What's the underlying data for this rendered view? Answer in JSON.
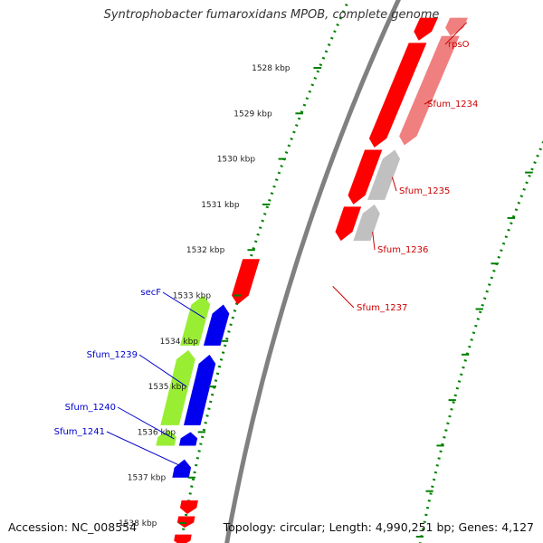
{
  "title": "Syntrophobacter fumaroxidans MPOB, complete genome",
  "footer": {
    "accession": "Accession: NC_008554",
    "summary": "Topology: circular; Length: 4,990,251 bp; Genes: 4,127"
  },
  "colors": {
    "backbone": "#808080",
    "forward_gene": "#ff0000",
    "forward_gene_light": "#f08080",
    "reverse_gene_gray": "#c0c0c0",
    "reverse_gene_blue": "#0000ee",
    "reverse_gene_green": "#99ee33",
    "tick_green": "#008000",
    "label_red": "#cc0000",
    "label_blue": "#0000cc"
  },
  "scale": {
    "ticks": [
      {
        "label": "1528 kbp",
        "kbp": 1528
      },
      {
        "label": "1529 kbp",
        "kbp": 1529
      },
      {
        "label": "1530 kbp",
        "kbp": 1530
      },
      {
        "label": "1531 kbp",
        "kbp": 1531
      },
      {
        "label": "1532 kbp",
        "kbp": 1532
      },
      {
        "label": "1533 kbp",
        "kbp": 1533
      },
      {
        "label": "1534 kbp",
        "kbp": 1534
      },
      {
        "label": "1535 kbp",
        "kbp": 1535
      },
      {
        "label": "1536 kbp",
        "kbp": 1536
      },
      {
        "label": "1537 kbp",
        "kbp": 1537
      },
      {
        "label": "1538 kbp",
        "kbp": 1538
      }
    ]
  },
  "genes": [
    {
      "name": "rpsO",
      "strand": "forward",
      "color": "forward_gene_light",
      "start_kbp": 1526.9,
      "end_kbp": 1527.3,
      "labeled": true
    },
    {
      "name": "",
      "strand": "forward",
      "color": "forward_gene",
      "start_kbp": 1526.9,
      "end_kbp": 1527.4,
      "labeled": false
    },
    {
      "name": "Sfum_1234",
      "strand": "forward",
      "color": "forward_gene_light",
      "start_kbp": 1527.3,
      "end_kbp": 1529.7,
      "labeled": true
    },
    {
      "name": "",
      "strand": "forward",
      "color": "forward_gene",
      "start_kbp": 1527.45,
      "end_kbp": 1529.75,
      "labeled": false
    },
    {
      "name": "Sfum_1235",
      "strand": "reverse",
      "color": "reverse_gene_gray",
      "start_kbp": 1529.8,
      "end_kbp": 1530.9,
      "labeled": true
    },
    {
      "name": "",
      "strand": "forward",
      "color": "forward_gene",
      "start_kbp": 1529.8,
      "end_kbp": 1531.0,
      "labeled": false
    },
    {
      "name": "Sfum_1236",
      "strand": "reverse",
      "color": "reverse_gene_gray",
      "start_kbp": 1531.0,
      "end_kbp": 1531.8,
      "labeled": true
    },
    {
      "name": "",
      "strand": "forward",
      "color": "forward_gene",
      "start_kbp": 1531.05,
      "end_kbp": 1531.8,
      "labeled": false
    },
    {
      "name": "Sfum_1237",
      "strand": "forward",
      "color": "forward_gene",
      "start_kbp": 1532.2,
      "end_kbp": 1533.2,
      "labeled": true
    },
    {
      "name": "secF",
      "strand": "reverse",
      "color": "reverse_gene_green",
      "start_kbp": 1533.0,
      "end_kbp": 1534.1,
      "labeled": true
    },
    {
      "name": "",
      "strand": "reverse",
      "color": "reverse_gene_blue",
      "start_kbp": 1533.2,
      "end_kbp": 1534.1,
      "labeled": false
    },
    {
      "name": "Sfum_1239",
      "strand": "reverse",
      "color": "reverse_gene_green",
      "start_kbp": 1534.2,
      "end_kbp": 1535.85,
      "labeled": true
    },
    {
      "name": "",
      "strand": "reverse",
      "color": "reverse_gene_blue",
      "start_kbp": 1534.3,
      "end_kbp": 1535.85,
      "labeled": false
    },
    {
      "name": "Sfum_1240",
      "strand": "reverse",
      "color": "reverse_gene_green",
      "start_kbp": 1535.95,
      "end_kbp": 1536.3,
      "labeled": true
    },
    {
      "name": "",
      "strand": "reverse",
      "color": "reverse_gene_blue",
      "start_kbp": 1536.0,
      "end_kbp": 1536.3,
      "labeled": false
    },
    {
      "name": "Sfum_1241",
      "strand": "reverse",
      "color": "reverse_gene_blue",
      "start_kbp": 1536.6,
      "end_kbp": 1537.0,
      "labeled": true
    },
    {
      "name": "",
      "strand": "forward",
      "color": "forward_gene",
      "start_kbp": 1537.5,
      "end_kbp": 1537.8,
      "labeled": false
    },
    {
      "name": "",
      "strand": "forward",
      "color": "forward_gene",
      "start_kbp": 1537.85,
      "end_kbp": 1538.1,
      "labeled": false
    },
    {
      "name": "",
      "strand": "forward",
      "color": "forward_gene",
      "start_kbp": 1538.25,
      "end_kbp": 1538.5,
      "labeled": false
    }
  ]
}
